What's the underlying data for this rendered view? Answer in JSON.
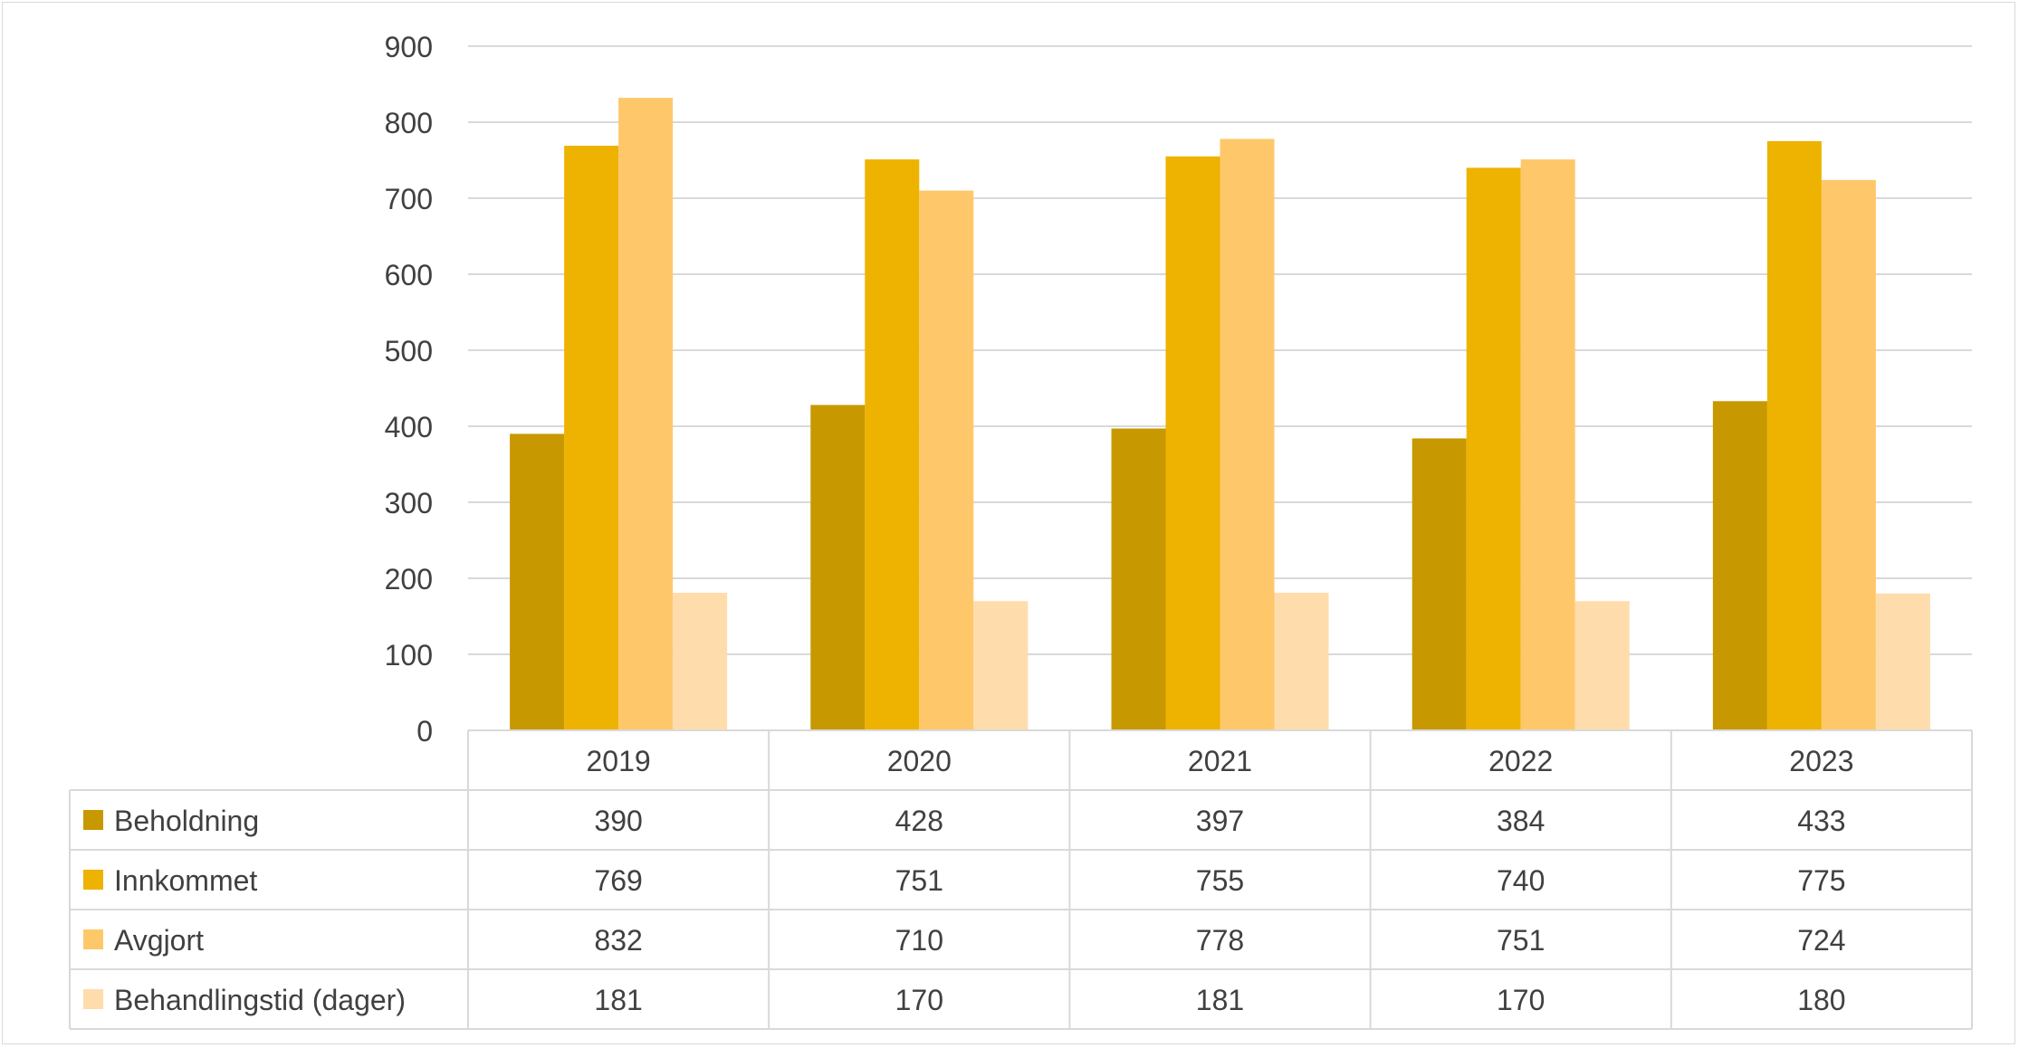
{
  "chart_data": {
    "type": "bar",
    "title": "",
    "xlabel": "",
    "ylabel": "",
    "ylim": [
      0,
      900
    ],
    "yticks": [
      0,
      100,
      200,
      300,
      400,
      500,
      600,
      700,
      800,
      900
    ],
    "grid": true,
    "legend": "data-table-left",
    "categories": [
      "2019",
      "2020",
      "2021",
      "2022",
      "2023"
    ],
    "series": [
      {
        "name": "Beholdning",
        "color": "#c89800",
        "values": [
          390,
          428,
          397,
          384,
          433
        ]
      },
      {
        "name": "Innkommet",
        "color": "#eeb200",
        "values": [
          769,
          751,
          755,
          740,
          775
        ]
      },
      {
        "name": "Avgjort",
        "color": "#fec86a",
        "values": [
          832,
          710,
          778,
          751,
          724
        ]
      },
      {
        "name": "Behandlingstid (dager)",
        "color": "#fedcac",
        "values": [
          181,
          170,
          181,
          170,
          180
        ]
      }
    ]
  }
}
